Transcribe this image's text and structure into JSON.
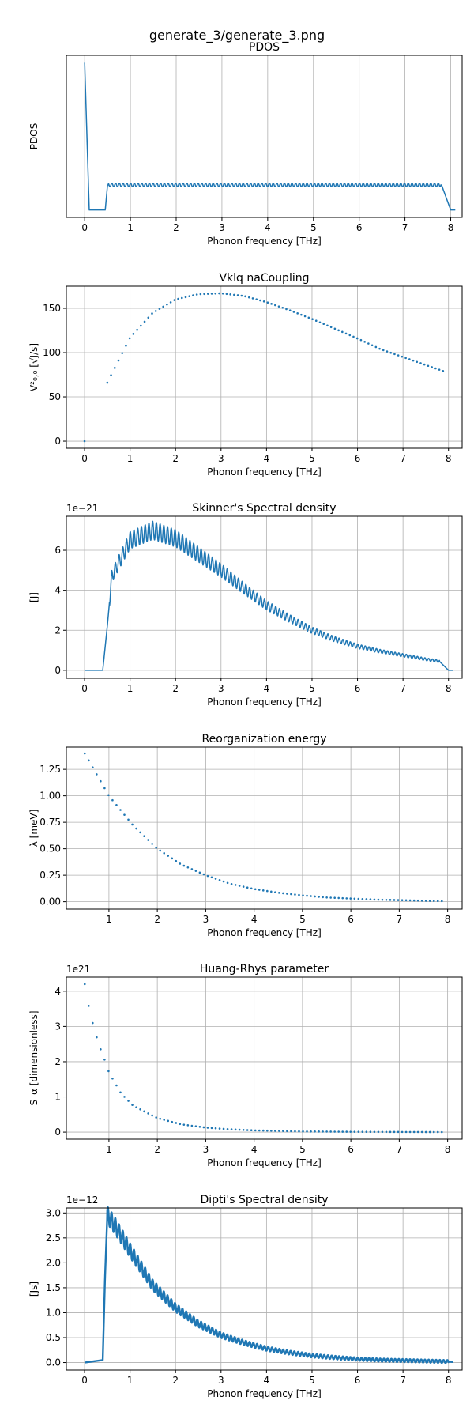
{
  "figure": {
    "suptitle": "generate_3/generate_3.png"
  },
  "styles": {
    "line_color": "#1f77b4",
    "grid_color": "#b0b0b0",
    "axis_color": "#000000"
  },
  "chart_data": [
    {
      "id": "pdos",
      "type": "line",
      "title": "PDOS",
      "xlabel": "Phonon frequency [THz]",
      "ylabel": "PDOS",
      "xlim": [
        -0.4,
        8.25
      ],
      "ylim": [
        -0.05,
        1.05
      ],
      "xticks": [
        0,
        1,
        2,
        3,
        4,
        5,
        6,
        7,
        8
      ],
      "yticks": [],
      "grid": "x",
      "series": [
        {
          "x": [
            0,
            0.1,
            0.45,
            0.5,
            7.75,
            7.8,
            8.0,
            8.1
          ],
          "y": [
            1.0,
            0.0,
            0.0,
            0.17,
            0.17,
            0.17,
            0.0,
            0.0
          ],
          "ripple": {
            "from": 0.52,
            "to": 7.78,
            "amp": 0.012,
            "period": 0.082
          }
        }
      ]
    },
    {
      "id": "vklq",
      "type": "scatter",
      "title": "Vklq naCoupling",
      "xlabel": "Phonon frequency [THz]",
      "ylabel": "V²₀,₀ [√J/s]",
      "xlim": [
        -0.4,
        8.3
      ],
      "ylim": [
        -8,
        175
      ],
      "xticks": [
        0,
        1,
        2,
        3,
        4,
        5,
        6,
        7,
        8
      ],
      "yticks": [
        0,
        50,
        100,
        150
      ],
      "grid": "both",
      "series": [
        {
          "x": [
            0,
            0.5,
            1.0,
            1.5,
            2.0,
            2.5,
            3.0,
            3.5,
            4.0,
            4.5,
            5.0,
            5.5,
            6.0,
            6.5,
            7.0,
            7.5,
            7.95
          ],
          "y": [
            0,
            66,
            117,
            145,
            160,
            166,
            167,
            164,
            157,
            148,
            138,
            127,
            116,
            104,
            95,
            86,
            78
          ],
          "sampling": {
            "from": 0.5,
            "to": 7.95,
            "step": 0.082,
            "extra": [
              [
                0,
                0
              ]
            ]
          }
        }
      ]
    },
    {
      "id": "skinner",
      "type": "line",
      "title": "Skinner's Spectral density",
      "xlabel": "Phonon frequency [THz]",
      "ylabel": "[J]",
      "offset_text": "1e−21",
      "xlim": [
        -0.4,
        8.3
      ],
      "ylim": [
        -0.4,
        7.7
      ],
      "xticks": [
        0,
        1,
        2,
        3,
        4,
        5,
        6,
        7,
        8
      ],
      "yticks": [
        0,
        2,
        4,
        6
      ],
      "grid": "both",
      "series": [
        {
          "x": [
            0,
            0.4,
            0.5,
            0.6,
            0.8,
            1.0,
            1.5,
            2.0,
            2.5,
            3.0,
            3.5,
            4.0,
            4.5,
            5.0,
            5.5,
            6.0,
            6.5,
            7.0,
            7.5,
            7.8,
            8.0,
            8.1
          ],
          "y": [
            0,
            0,
            2.2,
            4.7,
            5.6,
            6.5,
            7.0,
            6.6,
            5.8,
            5.0,
            4.1,
            3.25,
            2.6,
            2.0,
            1.55,
            1.2,
            0.95,
            0.75,
            0.55,
            0.45,
            0,
            0
          ],
          "ripple": {
            "from": 0.55,
            "to": 7.8,
            "amp": 0.06,
            "period": 0.082
          }
        }
      ]
    },
    {
      "id": "reorg",
      "type": "scatter",
      "title": "Reorganization energy",
      "xlabel": "Phonon frequency [THz]",
      "ylabel": "λ [meV]",
      "xlim": [
        0.12,
        8.3
      ],
      "ylim": [
        -0.07,
        1.46
      ],
      "xticks": [
        1,
        2,
        3,
        4,
        5,
        6,
        7,
        8
      ],
      "yticks": [
        0.0,
        0.25,
        0.5,
        0.75,
        1.0,
        1.25
      ],
      "ytick_labels": [
        "0.00",
        "0.25",
        "0.50",
        "0.75",
        "1.00",
        "1.25"
      ],
      "grid": "both",
      "series": [
        {
          "x": [
            0.5,
            1.0,
            1.5,
            2.0,
            2.5,
            3.0,
            3.5,
            4.0,
            4.5,
            5.0,
            5.5,
            6.0,
            6.5,
            7.0,
            7.5,
            7.95
          ],
          "y": [
            1.4,
            1.0,
            0.72,
            0.5,
            0.35,
            0.25,
            0.17,
            0.12,
            0.085,
            0.06,
            0.04,
            0.03,
            0.02,
            0.015,
            0.01,
            0.005
          ],
          "sampling": {
            "from": 0.5,
            "to": 7.95,
            "step": 0.082
          }
        }
      ]
    },
    {
      "id": "huang",
      "type": "scatter",
      "title": "Huang-Rhys parameter",
      "xlabel": "Phonon frequency [THz]",
      "ylabel": "S_α [dimensionless]",
      "offset_text": "1e21",
      "xlim": [
        0.12,
        8.3
      ],
      "ylim": [
        -0.2,
        4.4
      ],
      "xticks": [
        1,
        2,
        3,
        4,
        5,
        6,
        7,
        8
      ],
      "yticks": [
        0,
        1,
        2,
        3,
        4
      ],
      "grid": "both",
      "series": [
        {
          "x": [
            0.5,
            0.6,
            0.7,
            0.8,
            0.9,
            1.0,
            1.25,
            1.5,
            2.0,
            2.5,
            3.0,
            3.5,
            4.0,
            5.0,
            6.0,
            7.0,
            7.95
          ],
          "y": [
            4.2,
            3.45,
            2.9,
            2.45,
            2.1,
            1.7,
            1.1,
            0.75,
            0.4,
            0.22,
            0.13,
            0.08,
            0.05,
            0.02,
            0.01,
            0.005,
            0.002
          ],
          "sampling": {
            "from": 0.5,
            "to": 7.95,
            "step": 0.082
          }
        }
      ]
    },
    {
      "id": "dipti",
      "type": "line",
      "title": "Dipti's Spectral density",
      "xlabel": "Phonon frequency [THz]",
      "ylabel": "[Js]",
      "offset_text": "1e−12",
      "xlim": [
        -0.4,
        8.3
      ],
      "ylim": [
        -0.15,
        3.1
      ],
      "xticks": [
        0,
        1,
        2,
        3,
        4,
        5,
        6,
        7,
        8
      ],
      "yticks": [
        0.0,
        0.5,
        1.0,
        1.5,
        2.0,
        2.5,
        3.0
      ],
      "ytick_labels": [
        "0.0",
        "0.5",
        "1.0",
        "1.5",
        "2.0",
        "2.5",
        "3.0"
      ],
      "grid": "both",
      "series": [
        {
          "x": [
            0,
            0.4,
            0.45,
            0.5,
            0.55,
            0.7,
            1.0,
            1.5,
            2.0,
            2.5,
            3.0,
            3.5,
            4.0,
            4.5,
            5.0,
            5.5,
            6.0,
            6.5,
            7.0,
            7.5,
            8.0,
            8.1
          ],
          "y": [
            0,
            0.05,
            1.7,
            2.95,
            2.9,
            2.7,
            2.25,
            1.55,
            1.1,
            0.78,
            0.55,
            0.4,
            0.28,
            0.2,
            0.14,
            0.1,
            0.07,
            0.05,
            0.04,
            0.03,
            0.02,
            0.01
          ],
          "ripple": {
            "from": 0.5,
            "to": 8.0,
            "amp": 0.05,
            "period": 0.082
          }
        }
      ]
    }
  ]
}
